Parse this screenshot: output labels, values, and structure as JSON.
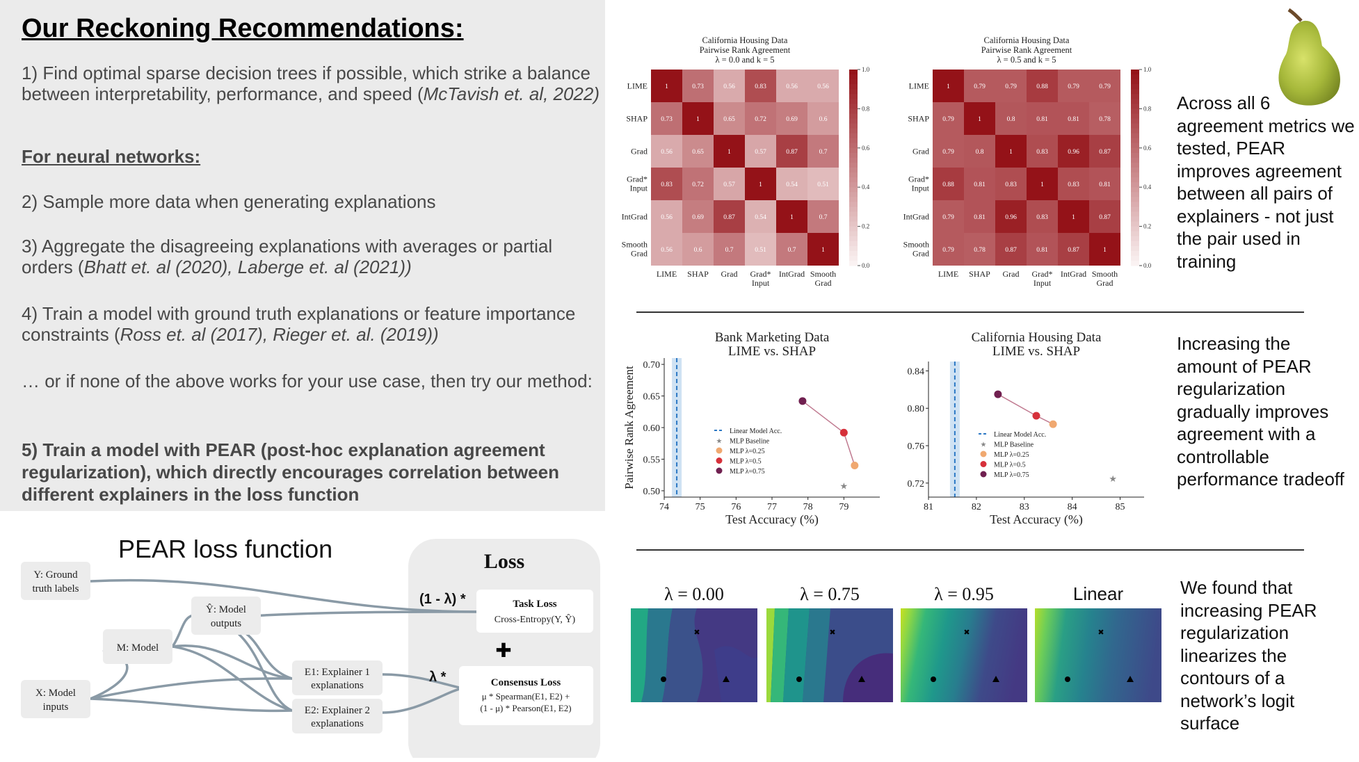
{
  "left": {
    "title": "Our Reckoning Recommendations:",
    "rec1": {
      "text": "1) Find optimal sparse decision trees if possible, which strike a balance between interpretability, performance, and speed (",
      "cite": "McTavish et. al, 2022)"
    },
    "nn_heading": "For neural networks:",
    "rec2": "2) Sample more data when generating explanations",
    "rec3": {
      "text": "3) Aggregate the disagreeing explanations with averages or partial orders (",
      "cite": "Bhatt et. al (2020), Laberge et. al (2021))"
    },
    "rec4": {
      "text": "4) Train a model with ground truth explanations or feature importance constraints (",
      "cite": "Ross et. al (2017), Rieger et. al. (2019))"
    },
    "else": "… or if none of the above works for your use case, then try our method:",
    "rec5": "5) Train a model with PEAR (post-hoc explanation agreement regularization), which directly encourages correlation between different explainers in the loss function"
  },
  "diagram": {
    "title": "PEAR loss function",
    "loss_title": "Loss",
    "y_node": "Y: Ground truth labels",
    "yhat_node": "Ŷ: Model outputs",
    "m_node": "M: Model",
    "x_node": "X: Model inputs",
    "e1_node": "E1: Explainer 1 explanations",
    "e2_node": "E2: Explainer 2 explanations",
    "task_weight": "(1 - λ) *",
    "task_title": "Task Loss",
    "task_formula": "Cross-Entropy(Y, Ŷ)",
    "plus": "✚",
    "cons_weight": "λ *",
    "cons_title": "Consensus Loss",
    "cons_line1": "μ * Spearman(E1, E2)  +",
    "cons_line2": "(1 - μ) * Pearson(E1, E2)"
  },
  "heatmaps": [
    {
      "title1": "California Housing Data",
      "title2": "Pairwise Rank Agreement",
      "title3": "λ = 0.0 and k = 5",
      "labels": [
        "LIME",
        "SHAP",
        "Grad",
        "Grad* Input",
        "IntGrad",
        "Smooth Grad"
      ],
      "matrix": [
        [
          "1",
          "0.73",
          "0.56",
          "0.83",
          "0.56",
          "0.56"
        ],
        [
          "0.73",
          "1",
          "0.65",
          "0.72",
          "0.69",
          "0.6"
        ],
        [
          "0.56",
          "0.65",
          "1",
          "0.57",
          "0.87",
          "0.7"
        ],
        [
          "0.83",
          "0.72",
          "0.57",
          "1",
          "0.54",
          "0.51"
        ],
        [
          "0.56",
          "0.69",
          "0.87",
          "0.54",
          "1",
          "0.7"
        ],
        [
          "0.56",
          "0.6",
          "0.7",
          "0.51",
          "0.7",
          "1"
        ]
      ],
      "cbar_ticks": [
        "1.0",
        "0.8",
        "0.6",
        "0.4",
        "0.2",
        "0.0"
      ]
    },
    {
      "title1": "California Housing Data",
      "title2": "Pairwise Rank Agreement",
      "title3": "λ = 0.5 and k = 5",
      "labels": [
        "LIME",
        "SHAP",
        "Grad",
        "Grad* Input",
        "IntGrad",
        "Smooth Grad"
      ],
      "matrix": [
        [
          "1",
          "0.79",
          "0.79",
          "0.88",
          "0.79",
          "0.79"
        ],
        [
          "0.79",
          "1",
          "0.8",
          "0.81",
          "0.81",
          "0.78"
        ],
        [
          "0.79",
          "0.8",
          "1",
          "0.83",
          "0.96",
          "0.87"
        ],
        [
          "0.88",
          "0.81",
          "0.83",
          "1",
          "0.83",
          "0.81"
        ],
        [
          "0.79",
          "0.81",
          "0.96",
          "0.83",
          "1",
          "0.87"
        ],
        [
          "0.79",
          "0.78",
          "0.87",
          "0.81",
          "0.87",
          "1"
        ]
      ],
      "cbar_ticks": [
        "1.0",
        "0.8",
        "0.6",
        "0.4",
        "0.2",
        "0.0"
      ]
    }
  ],
  "side_texts": {
    "t1": "Across all 6 agreement metrics we tested, PEAR improves agreement between all pairs of explainers - not just the pair used in training",
    "t2": "Increasing the amount of PEAR regularization gradually improves agreement with a controllable performance tradeoff",
    "t3": "We found that increasing PEAR regularization linearizes the contours of a network’s logit surface"
  },
  "chart_data": [
    {
      "type": "scatter",
      "title": "Bank Marketing Data\nLIME vs. SHAP",
      "title_lines": [
        "Bank Marketing Data",
        "LIME vs. SHAP"
      ],
      "xlabel": "Test Accuracy (%)",
      "ylabel": "Pairwise Rank Agreement",
      "xlim": [
        74,
        80
      ],
      "ylim": [
        0.49,
        0.71
      ],
      "xticks": [
        74,
        75,
        76,
        77,
        78,
        79
      ],
      "yticks": [
        0.5,
        0.55,
        0.6,
        0.65,
        0.7
      ],
      "linear_acc": 74.35,
      "mlp_baseline": {
        "x": 79.0,
        "y": 0.508
      },
      "series": [
        {
          "name": "MLP λ=0.25",
          "x": 79.3,
          "y": 0.54,
          "color": "#f0a870"
        },
        {
          "name": "MLP λ=0.5",
          "x": 79.0,
          "y": 0.592,
          "color": "#d6303a"
        },
        {
          "name": "MLP λ=0.75",
          "x": 77.85,
          "y": 0.642,
          "color": "#702050"
        }
      ],
      "legend": [
        "Linear Model Acc.",
        "MLP Baseline",
        "MLP λ=0.25",
        "MLP λ=0.5",
        "MLP λ=0.75"
      ]
    },
    {
      "type": "scatter",
      "title": "California Housing Data\nLIME vs. SHAP",
      "title_lines": [
        "California Housing Data",
        "LIME vs. SHAP"
      ],
      "xlabel": "Test Accuracy (%)",
      "ylabel": "",
      "xlim": [
        81,
        85.5
      ],
      "ylim": [
        0.705,
        0.85
      ],
      "xticks": [
        81,
        82,
        83,
        84,
        85
      ],
      "yticks": [
        0.72,
        0.76,
        0.8,
        0.84
      ],
      "linear_acc": 81.55,
      "mlp_baseline": {
        "x": 84.85,
        "y": 0.725
      },
      "series": [
        {
          "name": "MLP λ=0.25",
          "x": 83.6,
          "y": 0.783,
          "color": "#f0a870"
        },
        {
          "name": "MLP λ=0.5",
          "x": 83.25,
          "y": 0.792,
          "color": "#d6303a"
        },
        {
          "name": "MLP λ=0.75",
          "x": 82.45,
          "y": 0.815,
          "color": "#702050"
        }
      ],
      "legend": [
        "Linear Model Acc.",
        "MLP Baseline",
        "MLP λ=0.25",
        "MLP λ=0.5",
        "MLP λ=0.75"
      ]
    }
  ],
  "contours": [
    {
      "label": "λ = 0.00"
    },
    {
      "label": "λ = 0.75"
    },
    {
      "label": "λ = 0.95"
    },
    {
      "label": "Linear"
    }
  ]
}
